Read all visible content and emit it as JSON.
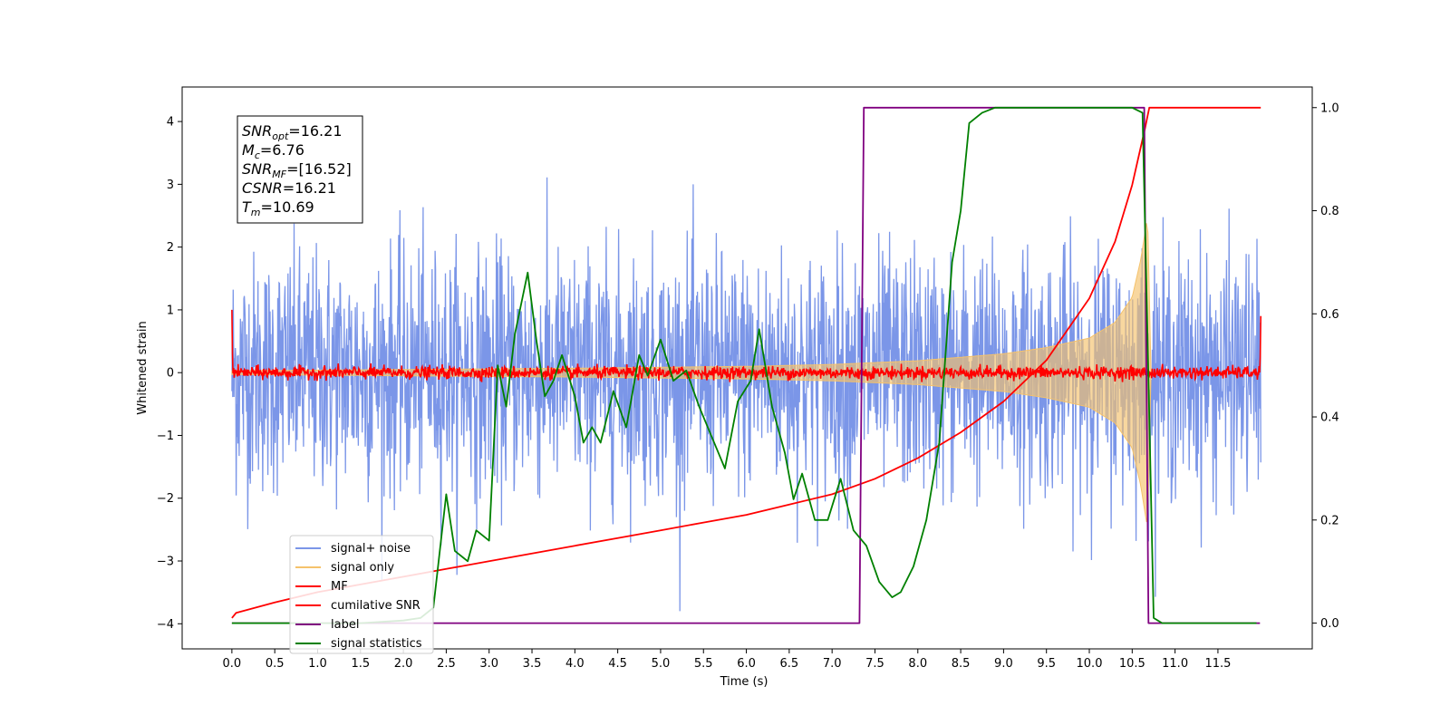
{
  "chart_data": {
    "type": "line",
    "xlabel": "Time (s)",
    "ylabel": "Whitened strain",
    "xlim": [
      -0.58,
      12.6
    ],
    "ylim": [
      -4.4,
      4.55
    ],
    "y2lim": [
      -0.05,
      1.04
    ],
    "xticks": [
      0.0,
      0.5,
      1.0,
      1.5,
      2.0,
      2.5,
      3.0,
      3.5,
      4.0,
      4.5,
      5.0,
      5.5,
      6.0,
      6.5,
      7.0,
      7.5,
      8.0,
      8.5,
      9.0,
      9.5,
      10.0,
      10.5,
      11.0,
      11.5
    ],
    "xtick_labels": [
      "0.0",
      "0.5",
      "1.0",
      "1.5",
      "2.0",
      "2.5",
      "3.0",
      "3.5",
      "4.0",
      "4.5",
      "5.0",
      "5.5",
      "6.0",
      "6.5",
      "7.0",
      "7.5",
      "8.0",
      "8.5",
      "9.0",
      "9.5",
      "10.0",
      "10.5",
      "11.0",
      "11.5"
    ],
    "yticks": [
      -4,
      -3,
      -2,
      -1,
      0,
      1,
      2,
      3,
      4
    ],
    "ytick_labels": [
      "−4",
      "−3",
      "−2",
      "−1",
      "0",
      "1",
      "2",
      "3",
      "4"
    ],
    "y2ticks": [
      0.0,
      0.2,
      0.4,
      0.6,
      0.8,
      1.0
    ],
    "y2tick_labels": [
      "0.0",
      "0.2",
      "0.4",
      "0.6",
      "0.8",
      "1.0"
    ],
    "grid": false,
    "legend_position": "lower-left",
    "annotation_box": {
      "lines": [
        {
          "base": "SNR",
          "sub": "opt",
          "rest": "=16.21"
        },
        {
          "base": "M",
          "sub": "c",
          "rest": "=6.76"
        },
        {
          "base": "SNR",
          "sub": "MF",
          "rest": "=[16.52]"
        },
        {
          "base": "CSNR",
          "sub": "",
          "rest": "=16.21"
        },
        {
          "base": "T",
          "sub": "m",
          "rest": "=10.69"
        }
      ]
    },
    "series": [
      {
        "name": "signal+ noise",
        "color": "#7b96e8",
        "axis": "left",
        "kind": "noise",
        "x_range": [
          0.0,
          12.0
        ],
        "amplitude_range": [
          -3.8,
          4.2
        ],
        "typical_std": 0.95
      },
      {
        "name": "signal only",
        "color": "#f5c26b",
        "axis": "left",
        "kind": "chirp-envelope",
        "x_range": [
          0.0,
          10.72
        ],
        "envelope": [
          [
            0.0,
            0.03
          ],
          [
            2.0,
            0.05
          ],
          [
            4.0,
            0.07
          ],
          [
            6.0,
            0.1
          ],
          [
            7.0,
            0.13
          ],
          [
            8.0,
            0.19
          ],
          [
            9.0,
            0.3
          ],
          [
            9.5,
            0.4
          ],
          [
            10.0,
            0.55
          ],
          [
            10.3,
            0.8
          ],
          [
            10.5,
            1.2
          ],
          [
            10.6,
            1.8
          ],
          [
            10.68,
            2.5
          ],
          [
            10.72,
            0.0
          ]
        ]
      },
      {
        "name": "MF",
        "color": "#ff0000",
        "axis": "left",
        "kind": "noise",
        "x_range": [
          0.0,
          12.0
        ],
        "amplitude_range": [
          -0.15,
          0.2
        ],
        "typical_std": 0.05,
        "edges": [
          [
            0.0,
            1.0
          ],
          [
            11.99,
            0.9
          ]
        ]
      },
      {
        "name": "cumilative SNR",
        "color": "#ff0000",
        "axis": "right",
        "kind": "line",
        "points": [
          [
            0.0,
            0.01
          ],
          [
            0.05,
            0.02
          ],
          [
            0.5,
            0.04
          ],
          [
            1.0,
            0.06
          ],
          [
            1.5,
            0.075
          ],
          [
            2.0,
            0.09
          ],
          [
            2.5,
            0.105
          ],
          [
            3.0,
            0.12
          ],
          [
            3.5,
            0.135
          ],
          [
            4.0,
            0.15
          ],
          [
            4.5,
            0.165
          ],
          [
            5.0,
            0.18
          ],
          [
            5.5,
            0.195
          ],
          [
            6.0,
            0.21
          ],
          [
            6.5,
            0.23
          ],
          [
            7.0,
            0.25
          ],
          [
            7.5,
            0.28
          ],
          [
            8.0,
            0.32
          ],
          [
            8.5,
            0.37
          ],
          [
            9.0,
            0.43
          ],
          [
            9.5,
            0.51
          ],
          [
            10.0,
            0.63
          ],
          [
            10.3,
            0.74
          ],
          [
            10.5,
            0.85
          ],
          [
            10.65,
            0.96
          ],
          [
            10.7,
            1.0
          ],
          [
            12.0,
            1.0
          ]
        ]
      },
      {
        "name": "label",
        "color": "#800080",
        "axis": "right",
        "kind": "line",
        "points": [
          [
            0.0,
            0.0
          ],
          [
            7.32,
            0.0
          ],
          [
            7.37,
            1.0
          ],
          [
            10.64,
            1.0
          ],
          [
            10.69,
            0.0
          ],
          [
            11.99,
            0.0
          ]
        ]
      },
      {
        "name": "signal statistics",
        "color": "#008000",
        "axis": "right",
        "kind": "line",
        "points": [
          [
            0.0,
            0.0
          ],
          [
            0.3,
            0.0
          ],
          [
            0.6,
            0.0
          ],
          [
            1.0,
            0.0
          ],
          [
            1.5,
            0.0
          ],
          [
            2.0,
            0.005
          ],
          [
            2.2,
            0.01
          ],
          [
            2.35,
            0.03
          ],
          [
            2.5,
            0.25
          ],
          [
            2.6,
            0.14
          ],
          [
            2.75,
            0.12
          ],
          [
            2.85,
            0.18
          ],
          [
            3.0,
            0.16
          ],
          [
            3.1,
            0.5
          ],
          [
            3.2,
            0.42
          ],
          [
            3.3,
            0.56
          ],
          [
            3.45,
            0.68
          ],
          [
            3.55,
            0.55
          ],
          [
            3.65,
            0.44
          ],
          [
            3.75,
            0.47
          ],
          [
            3.85,
            0.52
          ],
          [
            4.0,
            0.44
          ],
          [
            4.1,
            0.35
          ],
          [
            4.2,
            0.38
          ],
          [
            4.3,
            0.35
          ],
          [
            4.45,
            0.45
          ],
          [
            4.6,
            0.38
          ],
          [
            4.75,
            0.52
          ],
          [
            4.85,
            0.48
          ],
          [
            5.0,
            0.55
          ],
          [
            5.15,
            0.47
          ],
          [
            5.3,
            0.49
          ],
          [
            5.45,
            0.42
          ],
          [
            5.6,
            0.36
          ],
          [
            5.75,
            0.3
          ],
          [
            5.9,
            0.43
          ],
          [
            6.05,
            0.47
          ],
          [
            6.15,
            0.57
          ],
          [
            6.3,
            0.42
          ],
          [
            6.45,
            0.33
          ],
          [
            6.55,
            0.24
          ],
          [
            6.65,
            0.29
          ],
          [
            6.8,
            0.2
          ],
          [
            6.95,
            0.2
          ],
          [
            7.1,
            0.28
          ],
          [
            7.25,
            0.18
          ],
          [
            7.4,
            0.15
          ],
          [
            7.55,
            0.08
          ],
          [
            7.7,
            0.05
          ],
          [
            7.8,
            0.06
          ],
          [
            7.95,
            0.11
          ],
          [
            8.1,
            0.2
          ],
          [
            8.25,
            0.35
          ],
          [
            8.4,
            0.7
          ],
          [
            8.5,
            0.8
          ],
          [
            8.6,
            0.97
          ],
          [
            8.75,
            0.99
          ],
          [
            8.9,
            1.0
          ],
          [
            9.5,
            1.0
          ],
          [
            10.0,
            1.0
          ],
          [
            10.5,
            1.0
          ],
          [
            10.62,
            0.99
          ],
          [
            10.7,
            0.4
          ],
          [
            10.75,
            0.01
          ],
          [
            10.85,
            0.0
          ],
          [
            11.5,
            0.0
          ],
          [
            11.95,
            0.0
          ]
        ]
      }
    ]
  }
}
